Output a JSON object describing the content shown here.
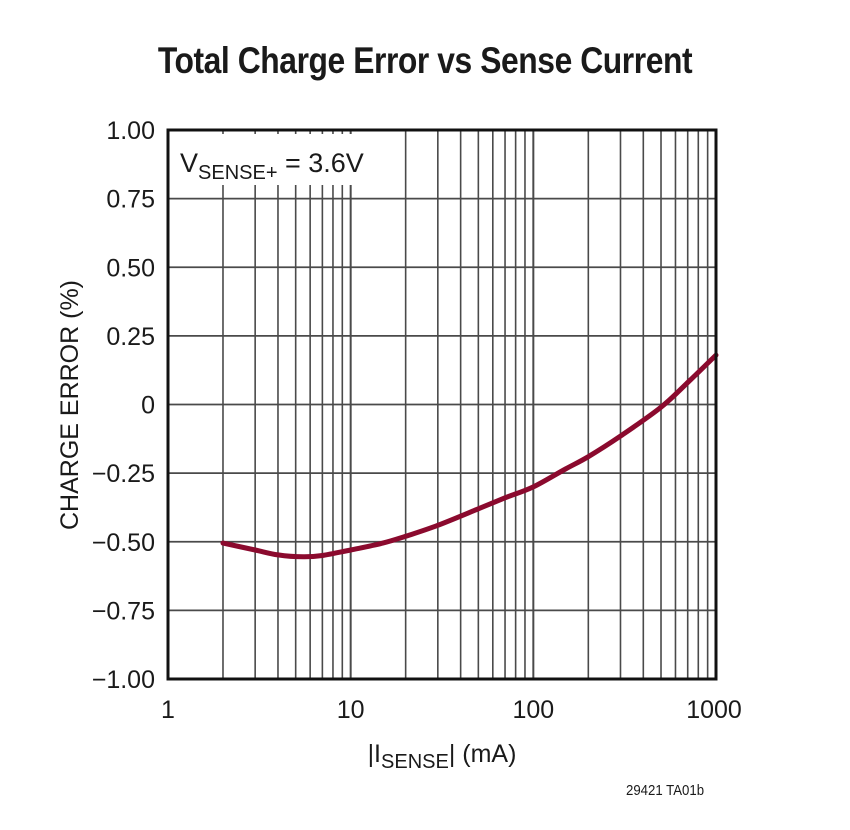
{
  "title": "Total Charge Error vs Sense Current",
  "footnote": "29421 TA01b",
  "annotation": {
    "main": "V",
    "sub": "SENSE+",
    "rest": " = 3.6V"
  },
  "xaxis": {
    "label_pre": "|I",
    "label_sub": "SENSE",
    "label_post": "| (mA)"
  },
  "yaxis": {
    "label": "CHARGE ERROR (%)"
  },
  "colors": {
    "curve": "#8b0a2e",
    "grid": "#4a4a4a",
    "frame": "#111111"
  },
  "chart_data": {
    "type": "line",
    "title": "Total Charge Error vs Sense Current",
    "xlabel": "|I_SENSE| (mA)",
    "ylabel": "CHARGE ERROR (%)",
    "xscale": "log",
    "xlim": [
      1,
      1000
    ],
    "ylim": [
      -1.0,
      1.0
    ],
    "grid": true,
    "xticks": [
      "1",
      "10",
      "100",
      "1000"
    ],
    "yticks": [
      "1.00",
      "0.75",
      "0.50",
      "0.25",
      "0",
      "−0.25",
      "−0.50",
      "−0.75",
      "−1.00"
    ],
    "annotations": [
      "V_SENSE+ = 3.6V"
    ],
    "legend": null,
    "series": [
      {
        "name": "V_SENSE+ = 3.6V",
        "x": [
          2,
          3,
          4,
          5.5,
          7,
          10,
          15,
          20,
          30,
          50,
          70,
          100,
          150,
          200,
          300,
          500,
          700,
          1000
        ],
        "values": [
          -0.505,
          -0.53,
          -0.548,
          -0.555,
          -0.55,
          -0.53,
          -0.505,
          -0.48,
          -0.44,
          -0.38,
          -0.34,
          -0.3,
          -0.235,
          -0.19,
          -0.115,
          -0.01,
          0.08,
          0.18
        ]
      }
    ]
  }
}
